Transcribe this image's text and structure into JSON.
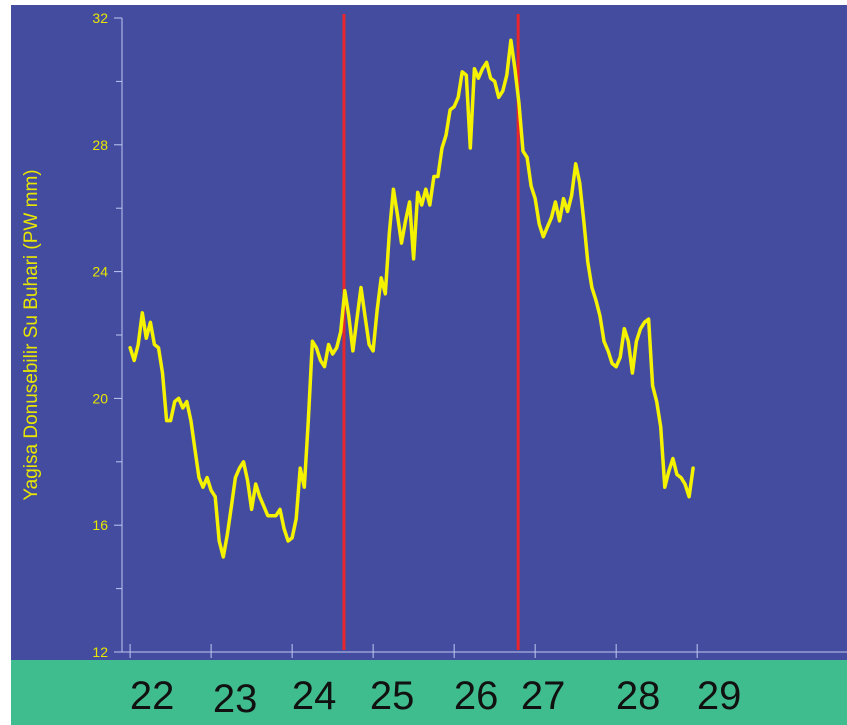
{
  "chart_data": {
    "type": "line",
    "ylabel": "Yagisa Donusebilir Su Buhari (PW mm)",
    "xlabel": "",
    "title": "",
    "ylim": [
      12,
      32
    ],
    "xlim": [
      21.9,
      30.8
    ],
    "yticks": [
      12,
      16,
      20,
      24,
      28,
      32
    ],
    "xticks": [
      22,
      23,
      24,
      25,
      26,
      27,
      28,
      29
    ],
    "xtick_labels": [
      "22",
      "23",
      "24",
      "25",
      "26",
      "27",
      "28",
      "29"
    ],
    "vertical_lines": [
      24.64,
      26.79
    ],
    "colors": {
      "plot_background": "#434c9f",
      "axis_band": "#40bd8f",
      "series": "#f5f200",
      "vertical_lines": "#e8262b",
      "axis": "#c0c8f0"
    },
    "series": [
      {
        "x": [
          22.0,
          22.05,
          22.1,
          22.15,
          22.2,
          22.25,
          22.3,
          22.35,
          22.4,
          22.45,
          22.5,
          22.55,
          22.6,
          22.65,
          22.7,
          22.75,
          22.8,
          22.85,
          22.9,
          22.95,
          23.0,
          23.05,
          23.1,
          23.15,
          23.2,
          23.25,
          23.3,
          23.35,
          23.4,
          23.45,
          23.5,
          23.55,
          23.6,
          23.65,
          23.7,
          23.75,
          23.8,
          23.85,
          23.9,
          23.95,
          24.0,
          24.05,
          24.1,
          24.15,
          24.2,
          24.25,
          24.3,
          24.35,
          24.4,
          24.45,
          24.5,
          24.55,
          24.6,
          24.65,
          24.7,
          24.75,
          24.8,
          24.85,
          24.9,
          24.95,
          25.0,
          25.05,
          25.1,
          25.15,
          25.2,
          25.25,
          25.3,
          25.35,
          25.4,
          25.45,
          25.5,
          25.55,
          25.6,
          25.65,
          25.7,
          25.75,
          25.8,
          25.85,
          25.9,
          25.95,
          26.0,
          26.05,
          26.1,
          26.15,
          26.2,
          26.25,
          26.3,
          26.35,
          26.4,
          26.45,
          26.5,
          26.55,
          26.6,
          26.65,
          26.7,
          26.75,
          26.8,
          26.85,
          26.9,
          26.95,
          27.0,
          27.05,
          27.1,
          27.15,
          27.2,
          27.25,
          27.3,
          27.35,
          27.4,
          27.45,
          27.5,
          27.55,
          27.6,
          27.65,
          27.7,
          27.75,
          27.8,
          27.85,
          27.9,
          27.95,
          28.0,
          28.05,
          28.1,
          28.15,
          28.2,
          28.25,
          28.3,
          28.35,
          28.4,
          28.45,
          28.5,
          28.55,
          28.6,
          28.65,
          28.7,
          28.75,
          28.8,
          28.85,
          28.9,
          28.95
        ],
        "y": [
          21.6,
          21.2,
          21.7,
          22.7,
          21.9,
          22.4,
          21.7,
          21.6,
          20.8,
          19.3,
          19.3,
          19.9,
          20.0,
          19.7,
          19.9,
          19.3,
          18.4,
          17.5,
          17.2,
          17.5,
          17.1,
          16.9,
          15.5,
          15.0,
          15.7,
          16.6,
          17.5,
          17.8,
          18.0,
          17.4,
          16.5,
          17.3,
          16.9,
          16.6,
          16.3,
          16.3,
          16.3,
          16.5,
          15.9,
          15.5,
          15.6,
          16.2,
          17.8,
          17.2,
          19.3,
          21.8,
          21.6,
          21.2,
          21.0,
          21.7,
          21.4,
          21.6,
          22.1,
          23.4,
          22.6,
          21.5,
          22.5,
          23.5,
          22.6,
          21.7,
          21.5,
          22.8,
          23.8,
          23.3,
          25.2,
          26.6,
          25.8,
          24.9,
          25.6,
          26.2,
          24.4,
          26.5,
          26.1,
          26.6,
          26.1,
          27.0,
          27.0,
          27.9,
          28.3,
          29.1,
          29.2,
          29.5,
          30.3,
          30.2,
          27.9,
          30.4,
          30.1,
          30.4,
          30.6,
          30.1,
          30.0,
          29.5,
          29.7,
          30.2,
          31.3,
          30.4,
          29.3,
          27.8,
          27.6,
          26.7,
          26.3,
          25.5,
          25.1,
          25.4,
          25.7,
          26.2,
          25.6,
          26.3,
          25.9,
          26.4,
          27.4,
          26.8,
          25.6,
          24.3,
          23.5,
          23.1,
          22.6,
          21.8,
          21.5,
          21.1,
          21.0,
          21.3,
          22.2,
          21.8,
          20.8,
          21.8,
          22.2,
          22.4,
          22.5,
          20.4,
          19.9,
          19.1,
          17.2,
          17.7,
          18.1,
          17.6,
          17.5,
          17.3,
          16.9,
          17.8
        ]
      }
    ]
  }
}
